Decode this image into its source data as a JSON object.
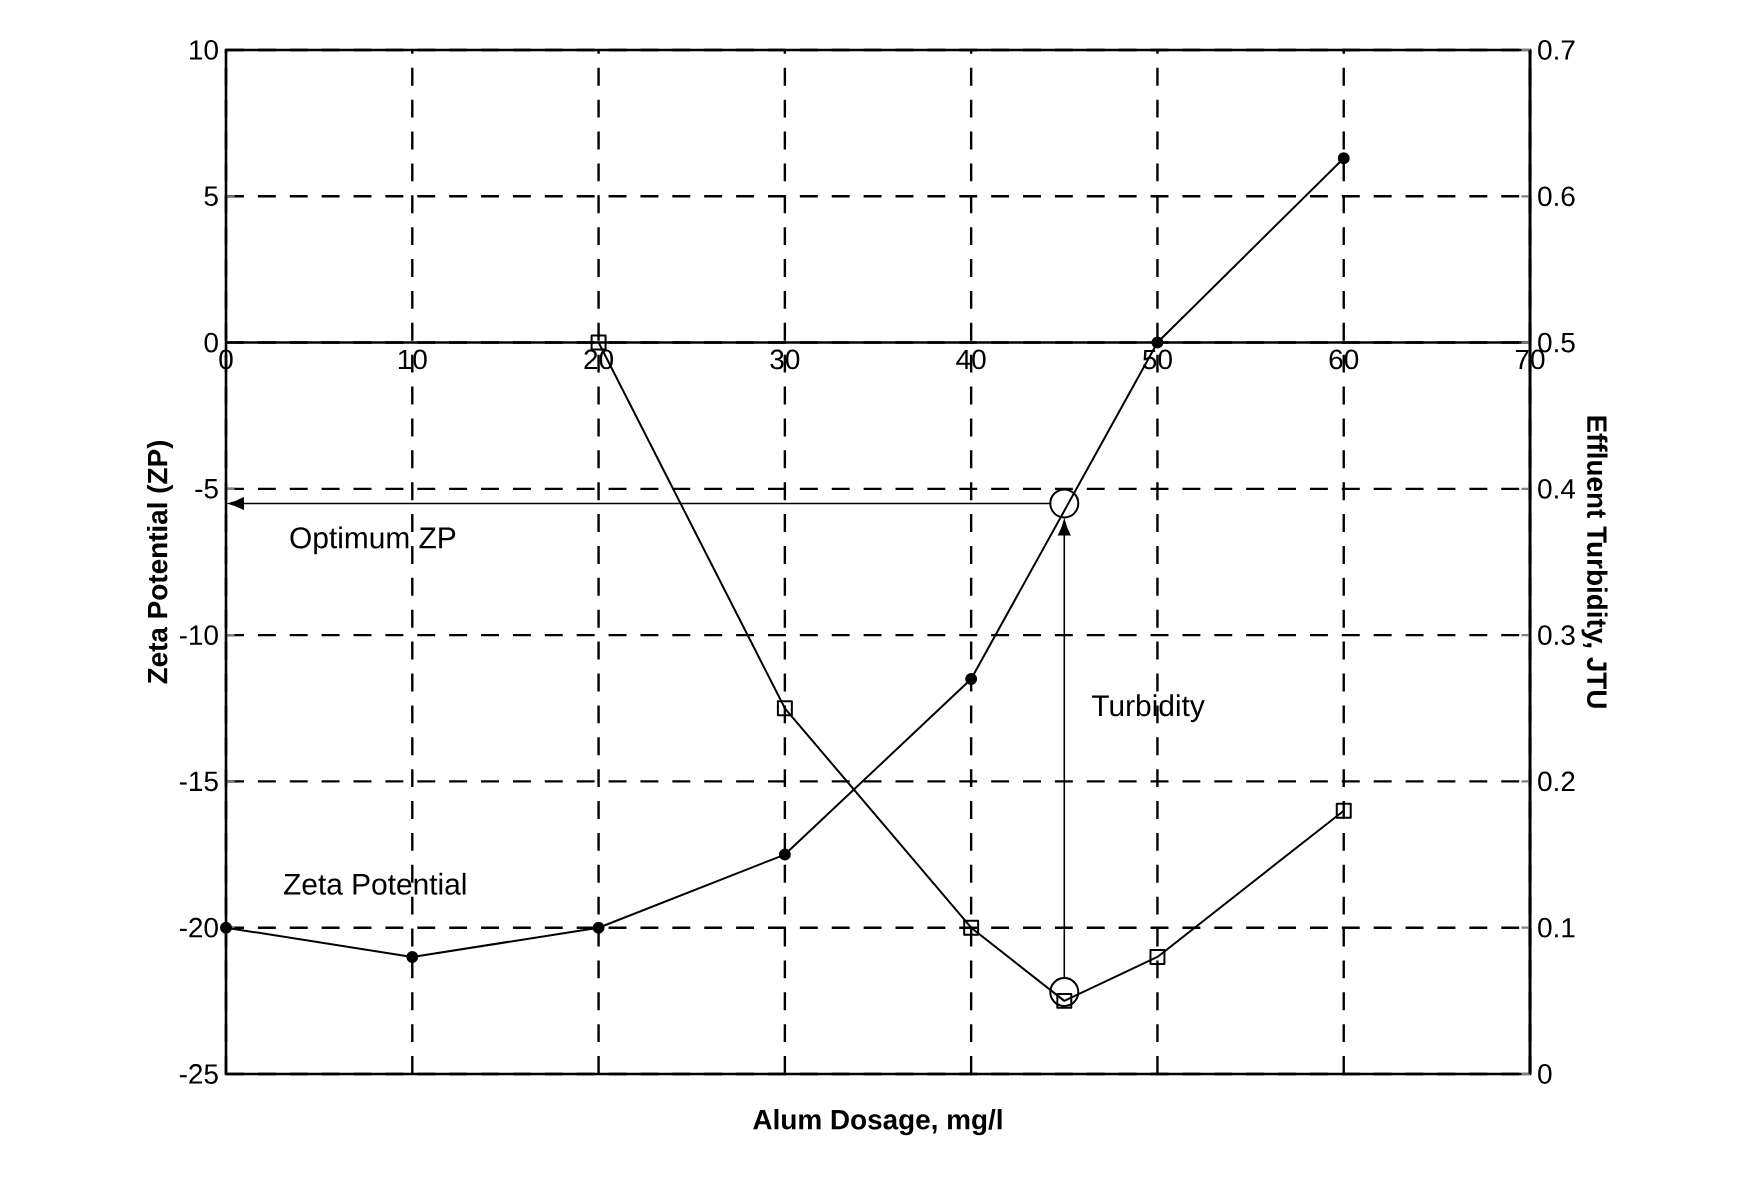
{
  "chart_data": {
    "type": "line",
    "xlabel": "Alum Dosage, mg/l",
    "ylabel": "Zeta Potential (ZP)",
    "y2label": "Effluent Turbidity, JTU",
    "xlim": [
      0,
      70
    ],
    "xticks": [
      0,
      10,
      20,
      30,
      40,
      50,
      60,
      70
    ],
    "ylim": [
      -25,
      10
    ],
    "yticks": [
      -25,
      -20,
      -15,
      -10,
      -5,
      0,
      5,
      10
    ],
    "y2lim": [
      0,
      0.7
    ],
    "y2ticks": [
      0,
      0.1,
      0.2,
      0.3,
      0.4,
      0.5,
      0.6,
      0.7
    ],
    "grid": true,
    "series": [
      {
        "color": "#000000",
        "marker": "circle",
        "x": [
          0,
          10,
          20,
          30,
          40,
          50,
          60
        ],
        "values": [
          -20,
          -21,
          -20,
          -17.5,
          -11.5,
          0,
          6.3
        ]
      },
      {
        "color": "#000000",
        "marker": "square",
        "axis": "y2",
        "x": [
          20,
          30,
          40,
          45,
          50,
          60
        ],
        "values": [
          0.5,
          0.25,
          0.1,
          0.05,
          0.08,
          0.18
        ]
      }
    ],
    "annotations": [
      "Optimum ZP",
      "Turbidity",
      "Zeta Potential"
    ]
  }
}
